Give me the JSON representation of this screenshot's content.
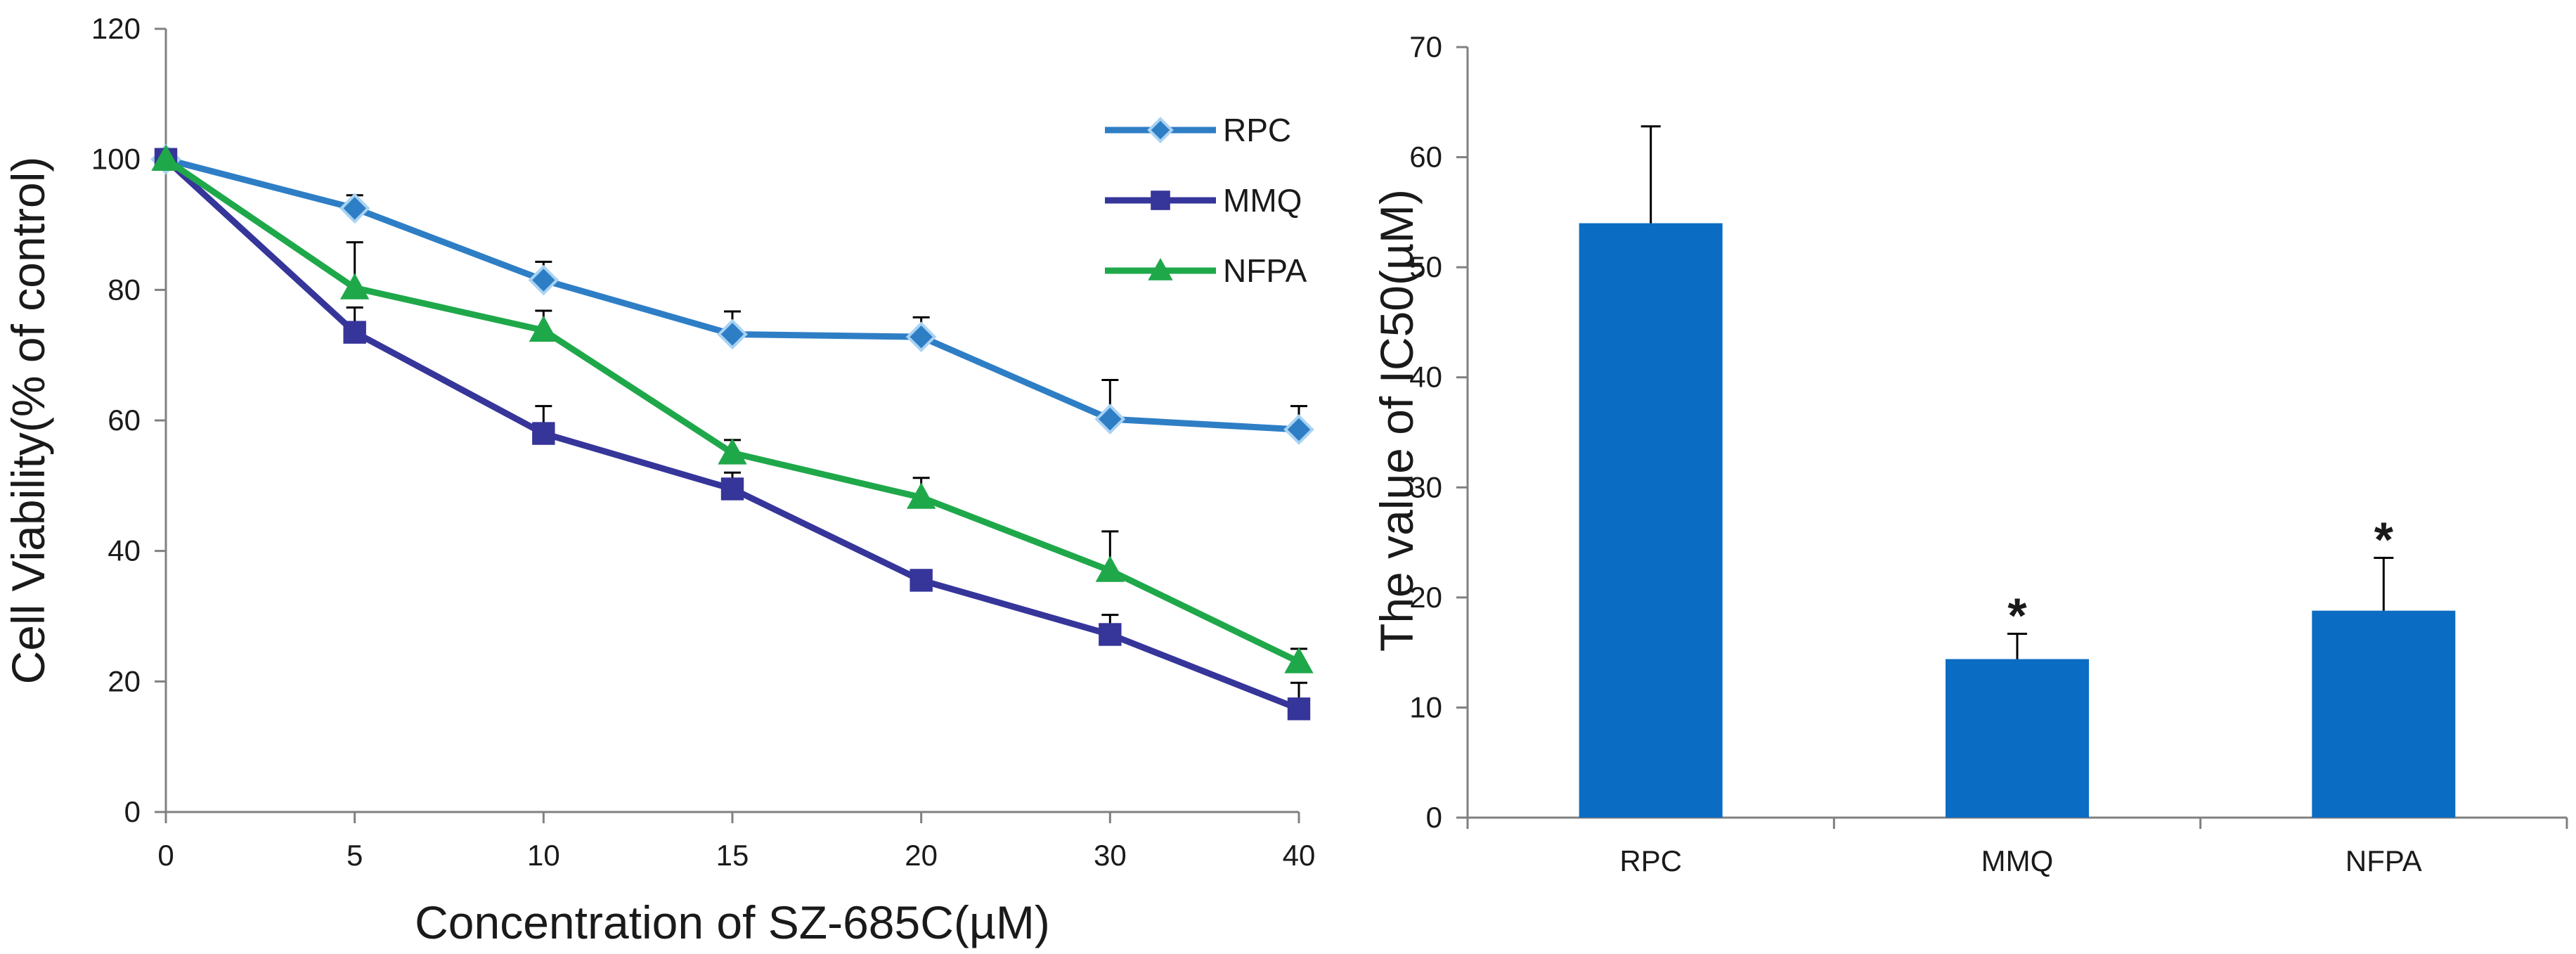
{
  "chart_data": [
    {
      "type": "line",
      "xlabel": "Concentration of  SZ-685C(µM)",
      "ylabel": "Cell Viability(% of control)",
      "categories": [
        "0",
        "5",
        "10",
        "15",
        "20",
        "30",
        "40"
      ],
      "ylim": [
        0,
        120
      ],
      "yticks": [
        "0",
        "20",
        "40",
        "60",
        "80",
        "100",
        "120"
      ],
      "legend_position": "top-right",
      "series": [
        {
          "name": "RPC",
          "marker": "diamond",
          "color": "#2e7ec6",
          "fill": "#2e7ec6",
          "edge": "#a9d3f2",
          "values": [
            100,
            92.5,
            81.5,
            73.2,
            72.8,
            60.2,
            58.6
          ],
          "err": [
            0,
            2.0,
            2.8,
            3.5,
            3.0,
            6.0,
            3.6
          ]
        },
        {
          "name": "MMQ",
          "marker": "square",
          "color": "#36359a",
          "fill": "#36359a",
          "edge": "#36359a",
          "values": [
            100,
            73.5,
            58.0,
            49.5,
            35.5,
            27.2,
            15.8
          ],
          "err": [
            0,
            3.8,
            4.2,
            2.5,
            0,
            3.0,
            4.0
          ]
        },
        {
          "name": "NFPA",
          "marker": "triangle",
          "color": "#1fa84a",
          "fill": "#1fa84a",
          "edge": "#1fa84a",
          "values": [
            100,
            80.3,
            73.8,
            55.0,
            48.2,
            37.0,
            23.0
          ],
          "err": [
            0,
            7.0,
            3.0,
            2.0,
            3.0,
            6.0,
            2.0
          ]
        }
      ]
    },
    {
      "type": "bar",
      "ylabel": "The value of IC50(µM)",
      "categories": [
        "RPC",
        "MMQ",
        "NFPA"
      ],
      "values": [
        54,
        14.4,
        18.8
      ],
      "err": [
        8.8,
        2.3,
        4.8
      ],
      "annotations": [
        "",
        "*",
        "*"
      ],
      "ylim": [
        0,
        70
      ],
      "yticks": [
        "0",
        "10",
        "20",
        "30",
        "40",
        "50",
        "60",
        "70"
      ],
      "color": "#0a6cc2"
    }
  ]
}
